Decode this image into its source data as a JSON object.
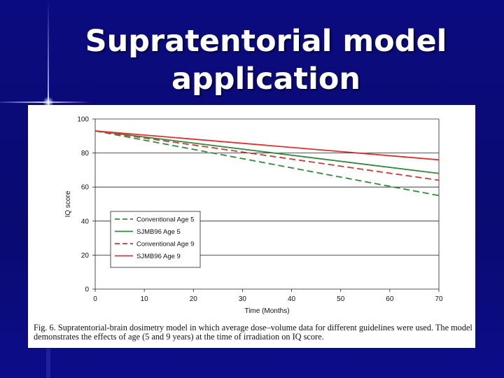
{
  "slide": {
    "title_line1": "Supratentorial model",
    "title_line2": "application",
    "caption": "Fig. 6. Supratentorial-brain dosimetry model in which average dose–volume data for different guidelines were used. The model demonstrates the effects of age (5 and 9 years) at the time of irradiation on IQ score."
  },
  "chart_data": {
    "type": "line",
    "xlabel": "Time (Months)",
    "ylabel": "IQ score",
    "xlim": [
      0,
      70
    ],
    "ylim": [
      0,
      100
    ],
    "xticks": [
      0,
      10,
      20,
      30,
      40,
      50,
      60,
      70
    ],
    "yticks": [
      0,
      20,
      40,
      60,
      80,
      100
    ],
    "grid": "horizontal",
    "legend_position": "lower-left",
    "series": [
      {
        "name": "Conventional Age 5",
        "color": "#2e8b3a",
        "dash": "dashed",
        "x": [
          0,
          70
        ],
        "y": [
          93,
          55
        ]
      },
      {
        "name": "SJMB96 Age 5",
        "color": "#2e8b3a",
        "dash": "solid",
        "x": [
          0,
          70
        ],
        "y": [
          93,
          68
        ]
      },
      {
        "name": "Conventional Age 9",
        "color": "#e03030",
        "dash": "dashed",
        "x": [
          0,
          70
        ],
        "y": [
          93,
          64
        ]
      },
      {
        "name": "SJMB96 Age 9",
        "color": "#e03030",
        "dash": "solid",
        "x": [
          0,
          70
        ],
        "y": [
          93,
          76
        ]
      }
    ]
  }
}
